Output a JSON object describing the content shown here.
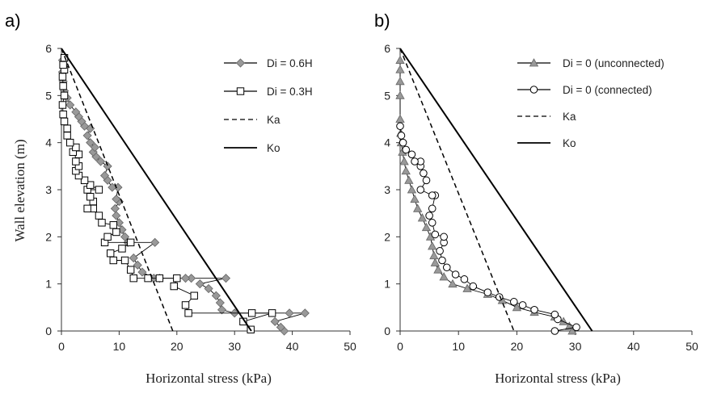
{
  "chart_data": [
    {
      "type": "line",
      "panel_label": "a)",
      "xlabel": "Horizontal stress (kPa)",
      "ylabel": "Wall elevation (m)",
      "xlim": [
        0,
        50
      ],
      "ylim": [
        0,
        6
      ],
      "xticks": [
        "0",
        "10",
        "20",
        "30",
        "40",
        "50"
      ],
      "yticks": [
        "0",
        "1",
        "2",
        "3",
        "4",
        "5",
        "6"
      ],
      "grid": false,
      "legend_position": "top-right",
      "legend_entries": [
        "Di = 0.6H",
        "Di = 0.3H",
        "Ka",
        "Ko"
      ],
      "series": [
        {
          "name": "Di = 0.6H",
          "marker": "diamond",
          "color": "#999999",
          "points": [
            [
              38.6,
              0.0
            ],
            [
              38.0,
              0.08
            ],
            [
              37.0,
              0.2
            ],
            [
              42.2,
              0.38
            ],
            [
              39.5,
              0.38
            ],
            [
              30.0,
              0.38
            ],
            [
              27.8,
              0.45
            ],
            [
              27.5,
              0.6
            ],
            [
              26.8,
              0.75
            ],
            [
              25.5,
              0.9
            ],
            [
              24.0,
              1.0
            ],
            [
              28.5,
              1.12
            ],
            [
              22.5,
              1.12
            ],
            [
              21.5,
              1.12
            ],
            [
              17.0,
              1.12
            ],
            [
              16.0,
              1.12
            ],
            [
              14.0,
              1.25
            ],
            [
              13.2,
              1.4
            ],
            [
              12.5,
              1.55
            ],
            [
              16.2,
              1.88
            ],
            [
              11.5,
              1.88
            ],
            [
              11.0,
              2.0
            ],
            [
              10.5,
              2.15
            ],
            [
              10.0,
              2.3
            ],
            [
              9.5,
              2.45
            ],
            [
              9.3,
              2.6
            ],
            [
              10.0,
              2.75
            ],
            [
              9.5,
              2.8
            ],
            [
              9.8,
              3.05
            ],
            [
              8.8,
              3.05
            ],
            [
              8.0,
              3.2
            ],
            [
              7.5,
              3.3
            ],
            [
              8.0,
              3.5
            ],
            [
              6.8,
              3.6
            ],
            [
              6.0,
              3.7
            ],
            [
              5.5,
              3.8
            ],
            [
              5.8,
              3.9
            ],
            [
              5.0,
              4.0
            ],
            [
              4.5,
              4.15
            ],
            [
              5.0,
              4.3
            ],
            [
              4.0,
              4.35
            ],
            [
              3.5,
              4.45
            ],
            [
              3.0,
              4.55
            ],
            [
              2.5,
              4.65
            ],
            [
              1.5,
              4.8
            ],
            [
              1.0,
              4.95
            ],
            [
              0.5,
              5.1
            ],
            [
              0.3,
              5.3
            ],
            [
              0.2,
              5.5
            ],
            [
              0.2,
              5.75
            ]
          ]
        },
        {
          "name": "Di = 0.3H",
          "marker": "square",
          "color": "#000000",
          "points": [
            [
              32.8,
              0.03
            ],
            [
              31.5,
              0.2
            ],
            [
              36.5,
              0.38
            ],
            [
              33.0,
              0.38
            ],
            [
              22.0,
              0.38
            ],
            [
              21.5,
              0.55
            ],
            [
              23.0,
              0.75
            ],
            [
              19.5,
              0.95
            ],
            [
              20.0,
              1.12
            ],
            [
              17.0,
              1.12
            ],
            [
              15.0,
              1.12
            ],
            [
              12.5,
              1.12
            ],
            [
              12.0,
              1.3
            ],
            [
              11.0,
              1.5
            ],
            [
              9.0,
              1.5
            ],
            [
              8.5,
              1.65
            ],
            [
              10.5,
              1.75
            ],
            [
              12.0,
              1.88
            ],
            [
              7.5,
              1.88
            ],
            [
              8.0,
              2.0
            ],
            [
              9.5,
              2.1
            ],
            [
              9.0,
              2.25
            ],
            [
              7.0,
              2.3
            ],
            [
              6.5,
              2.45
            ],
            [
              5.5,
              2.6
            ],
            [
              4.5,
              2.6
            ],
            [
              5.5,
              2.75
            ],
            [
              5.0,
              2.85
            ],
            [
              4.5,
              3.0
            ],
            [
              6.5,
              3.0
            ],
            [
              5.0,
              3.1
            ],
            [
              4.0,
              3.2
            ],
            [
              3.0,
              3.3
            ],
            [
              2.5,
              3.4
            ],
            [
              3.0,
              3.5
            ],
            [
              2.5,
              3.6
            ],
            [
              3.0,
              3.75
            ],
            [
              2.0,
              3.8
            ],
            [
              2.5,
              3.9
            ],
            [
              1.5,
              4.0
            ],
            [
              1.0,
              4.15
            ],
            [
              1.0,
              4.3
            ],
            [
              0.5,
              4.45
            ],
            [
              0.3,
              4.6
            ],
            [
              0.2,
              4.8
            ],
            [
              0.5,
              5.0
            ],
            [
              0.3,
              5.2
            ],
            [
              0.2,
              5.4
            ],
            [
              0.5,
              5.55
            ],
            [
              0.3,
              5.65
            ],
            [
              0.5,
              5.8
            ]
          ]
        },
        {
          "name": "Ka",
          "style": "dashed",
          "color": "#000000",
          "points": [
            [
              0,
              6
            ],
            [
              19.3,
              0
            ]
          ]
        },
        {
          "name": "Ko",
          "style": "solid",
          "color": "#000000",
          "points": [
            [
              0,
              6
            ],
            [
              32.9,
              0
            ]
          ]
        }
      ]
    },
    {
      "type": "line",
      "panel_label": "b)",
      "xlabel": "Horizontal stress (kPa)",
      "ylabel": "",
      "xlim": [
        0,
        50
      ],
      "ylim": [
        0,
        6
      ],
      "xticks": [
        "0",
        "10",
        "20",
        "30",
        "40",
        "50"
      ],
      "yticks": [
        "0",
        "1",
        "2",
        "3",
        "4",
        "5",
        "6"
      ],
      "grid": false,
      "legend_position": "top-right",
      "legend_entries": [
        "Di = 0 (unconnected)",
        "Di = 0 (connected)",
        "Ka",
        "Ko"
      ],
      "series": [
        {
          "name": "Di = 0 (unconnected)",
          "marker": "triangle",
          "color": "#999999",
          "points": [
            [
              29.5,
              0.0
            ],
            [
              29.0,
              0.1
            ],
            [
              28.0,
              0.2
            ],
            [
              26.5,
              0.3
            ],
            [
              23.0,
              0.4
            ],
            [
              20.0,
              0.5
            ],
            [
              17.5,
              0.65
            ],
            [
              15.0,
              0.78
            ],
            [
              11.5,
              0.9
            ],
            [
              9.0,
              1.0
            ],
            [
              7.5,
              1.15
            ],
            [
              6.5,
              1.3
            ],
            [
              6.0,
              1.45
            ],
            [
              5.8,
              1.6
            ],
            [
              5.5,
              1.8
            ],
            [
              5.2,
              2.0
            ],
            [
              4.5,
              2.2
            ],
            [
              3.8,
              2.4
            ],
            [
              3.0,
              2.6
            ],
            [
              2.5,
              2.8
            ],
            [
              2.0,
              3.0
            ],
            [
              1.5,
              3.2
            ],
            [
              1.0,
              3.4
            ],
            [
              0.7,
              3.6
            ],
            [
              0.4,
              3.8
            ],
            [
              0.2,
              4.0
            ],
            [
              0.1,
              4.2
            ],
            [
              0.0,
              4.5
            ],
            [
              0.0,
              5.0
            ],
            [
              0.0,
              5.3
            ],
            [
              0.0,
              5.55
            ],
            [
              0.0,
              5.75
            ]
          ]
        },
        {
          "name": "Di = 0 (connected)",
          "marker": "circle",
          "color": "#000000",
          "points": [
            [
              26.5,
              0.0
            ],
            [
              30.2,
              0.08
            ],
            [
              27.0,
              0.25
            ],
            [
              26.5,
              0.35
            ],
            [
              23.0,
              0.45
            ],
            [
              21.0,
              0.55
            ],
            [
              19.5,
              0.62
            ],
            [
              17.0,
              0.72
            ],
            [
              15.0,
              0.82
            ],
            [
              12.5,
              0.95
            ],
            [
              11.0,
              1.1
            ],
            [
              9.5,
              1.2
            ],
            [
              8.0,
              1.35
            ],
            [
              7.2,
              1.5
            ],
            [
              6.8,
              1.7
            ],
            [
              7.5,
              1.88
            ],
            [
              7.5,
              2.0
            ],
            [
              6.0,
              2.05
            ],
            [
              5.5,
              2.3
            ],
            [
              5.0,
              2.45
            ],
            [
              5.5,
              2.6
            ],
            [
              6.0,
              2.88
            ],
            [
              5.5,
              2.88
            ],
            [
              3.5,
              3.0
            ],
            [
              4.5,
              3.2
            ],
            [
              4.0,
              3.35
            ],
            [
              3.5,
              3.5
            ],
            [
              3.5,
              3.6
            ],
            [
              2.5,
              3.6
            ],
            [
              2.0,
              3.75
            ],
            [
              1.0,
              3.85
            ],
            [
              0.5,
              4.0
            ],
            [
              0.2,
              4.15
            ],
            [
              0.0,
              4.35
            ]
          ]
        },
        {
          "name": "Ka",
          "style": "dashed",
          "color": "#000000",
          "points": [
            [
              0,
              6
            ],
            [
              19.5,
              0
            ]
          ]
        },
        {
          "name": "Ko",
          "style": "solid",
          "color": "#000000",
          "points": [
            [
              0,
              6
            ],
            [
              32.9,
              0
            ]
          ]
        }
      ]
    }
  ]
}
